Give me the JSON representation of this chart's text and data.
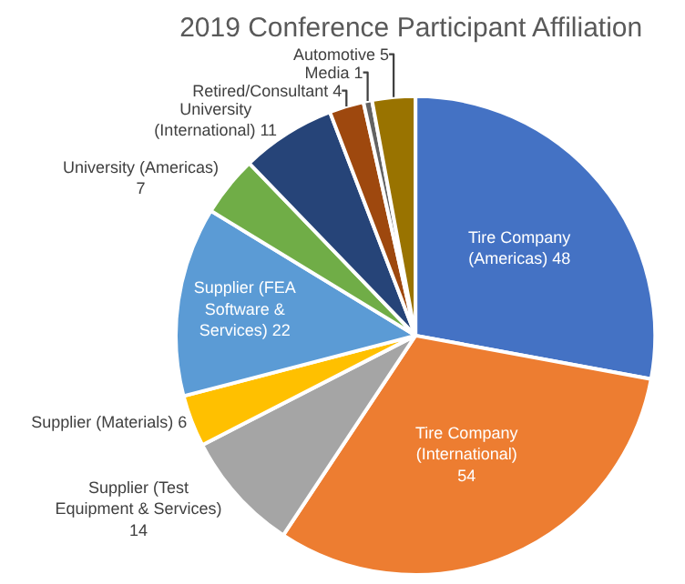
{
  "chart_data": {
    "type": "pie",
    "title": "2019 Conference Participant Affiliation",
    "categories": [
      "Tire Company (Americas) 48",
      "Tire Company (International) 54",
      "Supplier (Test Equipment & Services) 14",
      "Supplier (Materials) 6",
      "Supplier (FEA Software & Services) 22",
      "University (Americas) 7",
      "University (International) 11",
      "Retired/Consultant 4",
      "Media 1",
      "Automotive 5"
    ],
    "values": [
      48,
      54,
      14,
      6,
      22,
      7,
      11,
      4,
      1,
      5
    ],
    "colors": [
      "#4472c4",
      "#ed7d31",
      "#a5a5a5",
      "#ffc000",
      "#5b9bd5",
      "#70ad47",
      "#264478",
      "#9e480e",
      "#636363",
      "#997300"
    ],
    "legend": false
  }
}
